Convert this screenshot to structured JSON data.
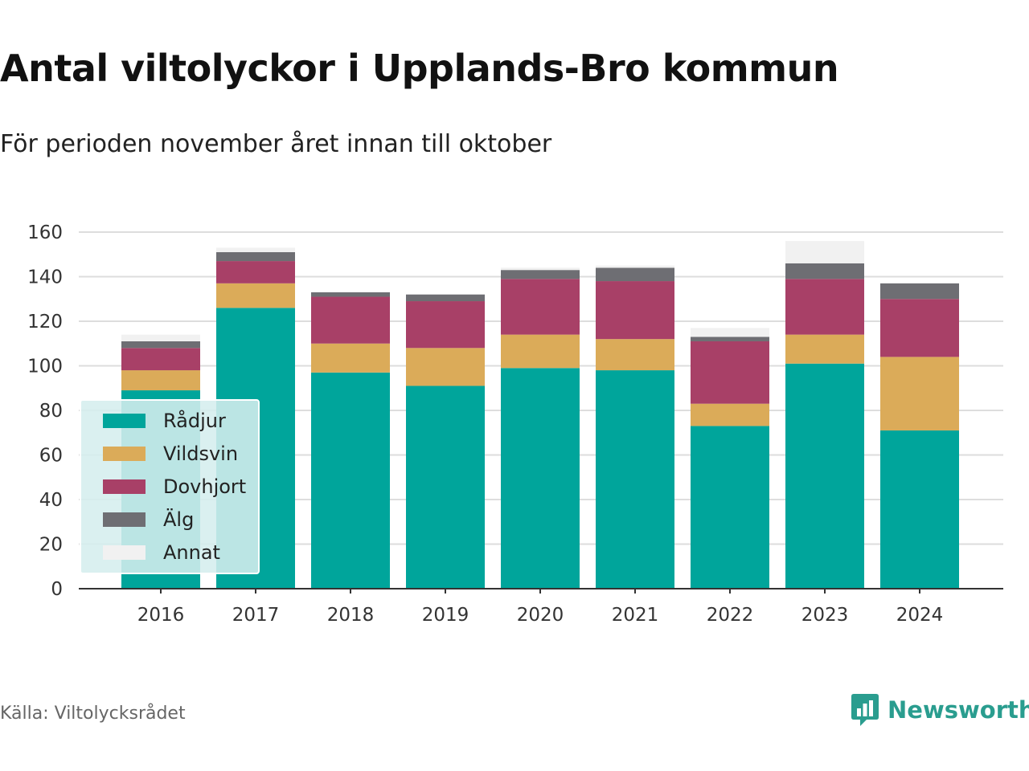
{
  "title": "Antal viltolyckor i Upplands-Bro kommun",
  "subtitle": "För perioden november året innan till oktober",
  "source": "Källa: Viltolycksrådet",
  "brand": {
    "name": "Newsworthy",
    "icon": "bar-chart-speech-bubble-icon",
    "color": "#2a9d8f"
  },
  "chart_data": {
    "type": "bar",
    "stacked": true,
    "categories": [
      "2016",
      "2017",
      "2018",
      "2019",
      "2020",
      "2021",
      "2022",
      "2023",
      "2024"
    ],
    "ylim": [
      0,
      160
    ],
    "yticks": [
      0,
      20,
      40,
      60,
      80,
      100,
      120,
      140,
      160
    ],
    "grid": true,
    "legend_position": "bottom-left",
    "series": [
      {
        "name": "Rådjur",
        "color": "#00a59b",
        "values": [
          89,
          126,
          97,
          91,
          99,
          98,
          73,
          101,
          71
        ]
      },
      {
        "name": "Vildsvin",
        "color": "#dbab59",
        "values": [
          9,
          11,
          13,
          17,
          15,
          14,
          10,
          13,
          33
        ]
      },
      {
        "name": "Dovhjort",
        "color": "#a84067",
        "values": [
          10,
          10,
          21,
          21,
          25,
          26,
          28,
          25,
          26
        ]
      },
      {
        "name": "Älg",
        "color": "#6e6e73",
        "values": [
          3,
          4,
          2,
          3,
          4,
          6,
          2,
          7,
          7
        ]
      },
      {
        "name": "Annat",
        "color": "#f1f1f1",
        "values": [
          3,
          2,
          0,
          0,
          1,
          1,
          4,
          10,
          0
        ]
      }
    ]
  }
}
